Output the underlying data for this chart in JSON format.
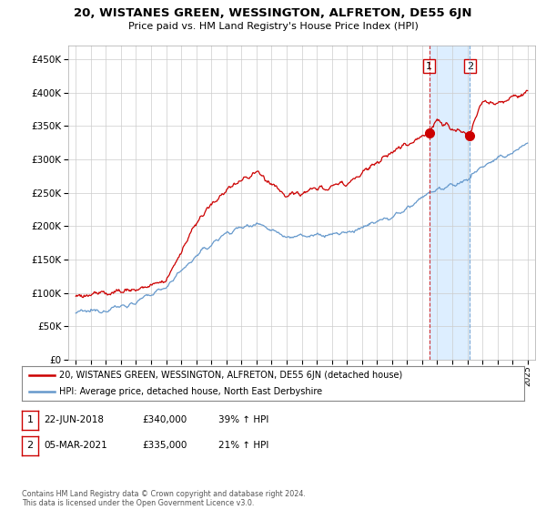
{
  "title": "20, WISTANES GREEN, WESSINGTON, ALFRETON, DE55 6JN",
  "subtitle": "Price paid vs. HM Land Registry's House Price Index (HPI)",
  "legend_line1": "20, WISTANES GREEN, WESSINGTON, ALFRETON, DE55 6JN (detached house)",
  "legend_line2": "HPI: Average price, detached house, North East Derbyshire",
  "footnote": "Contains HM Land Registry data © Crown copyright and database right 2024.\nThis data is licensed under the Open Government Licence v3.0.",
  "sale1_label": "1",
  "sale1_date": "22-JUN-2018",
  "sale1_price": "£340,000",
  "sale1_hpi": "39% ↑ HPI",
  "sale2_label": "2",
  "sale2_date": "05-MAR-2021",
  "sale2_price": "£335,000",
  "sale2_hpi": "21% ↑ HPI",
  "sale1_x": 2018.47,
  "sale1_y": 340000,
  "sale2_x": 2021.17,
  "sale2_y": 335000,
  "red_color": "#cc0000",
  "blue_color": "#6699cc",
  "shade_color": "#ddeeff",
  "background_color": "#ffffff",
  "grid_color": "#cccccc",
  "ylim": [
    0,
    470000
  ],
  "xlim": [
    1994.5,
    2025.5
  ],
  "yticks": [
    0,
    50000,
    100000,
    150000,
    200000,
    250000,
    300000,
    350000,
    400000,
    450000
  ],
  "ytick_labels": [
    "£0",
    "£50K",
    "£100K",
    "£150K",
    "£200K",
    "£250K",
    "£300K",
    "£350K",
    "£400K",
    "£450K"
  ]
}
